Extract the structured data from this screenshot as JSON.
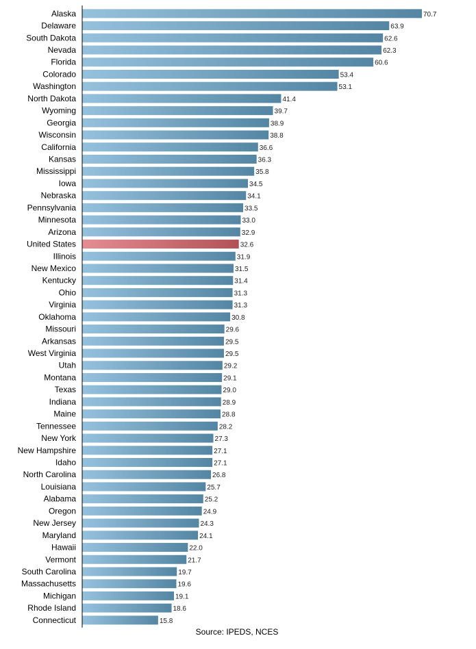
{
  "chart_data": {
    "type": "bar",
    "orientation": "horizontal",
    "categories": [
      "Alaska",
      "Delaware",
      "South Dakota",
      "Nevada",
      "Florida",
      "Colorado",
      "Washington",
      "North Dakota",
      "Wyoming",
      "Georgia",
      "Wisconsin",
      "California",
      "Kansas",
      "Mississippi",
      "Iowa",
      "Nebraska",
      "Pennsylvania",
      "Minnesota",
      "Arizona",
      "United States",
      "Illinois",
      "New Mexico",
      "Kentucky",
      "Ohio",
      "Virginia",
      "Oklahoma",
      "Missouri",
      "Arkansas",
      "West Virginia",
      "Utah",
      "Montana",
      "Texas",
      "Indiana",
      "Maine",
      "Tennessee",
      "New York",
      "New Hampshire",
      "Idaho",
      "North Carolina",
      "Louisiana",
      "Alabama",
      "Oregon",
      "New Jersey",
      "Maryland",
      "Hawaii",
      "Vermont",
      "South Carolina",
      "Massachusetts",
      "Michigan",
      "Rhode Island",
      "Connecticut"
    ],
    "values": [
      70.7,
      63.9,
      62.6,
      62.3,
      60.6,
      53.4,
      53.1,
      41.4,
      39.7,
      38.9,
      38.8,
      36.6,
      36.3,
      35.8,
      34.5,
      34.1,
      33.5,
      33.0,
      32.9,
      32.6,
      31.9,
      31.5,
      31.4,
      31.3,
      31.3,
      30.8,
      29.6,
      29.5,
      29.5,
      29.2,
      29.1,
      29.0,
      28.9,
      28.8,
      28.2,
      27.3,
      27.1,
      27.1,
      26.8,
      25.7,
      25.2,
      24.9,
      24.3,
      24.1,
      22.0,
      21.7,
      19.7,
      19.6,
      19.1,
      18.6,
      15.8
    ],
    "value_labels": [
      "70.7",
      "63.9",
      "62.6",
      "62.3",
      "60.6",
      "53.4",
      "53.1",
      "41.4",
      "39.7",
      "38.9",
      "38.8",
      "36.6",
      "36.3",
      "35.8",
      "34.5",
      "34.1",
      "33.5",
      "33.0",
      "32.9",
      "32.6",
      "31.9",
      "31.5",
      "31.4",
      "31.3",
      "31.3",
      "30.8",
      "29.6",
      "29.5",
      "29.5",
      "29.2",
      "29.1",
      "29.0",
      "28.9",
      "28.8",
      "28.2",
      "27.3",
      "27.1",
      "27.1",
      "26.8",
      "25.7",
      "25.2",
      "24.9",
      "24.3",
      "24.1",
      "22.0",
      "21.7",
      "19.7",
      "19.6",
      "19.1",
      "18.6",
      "15.8"
    ],
    "highlight_category": "United States",
    "xlim": [
      0,
      70.7
    ],
    "grid": false,
    "legend": "none",
    "colors": {
      "bar_start": "#95c1dd",
      "bar_end": "#5486a3",
      "highlight_start": "#e48d92",
      "highlight_end": "#b25258",
      "axis": "#000000"
    }
  },
  "source": "Source: IPEDS, NCES"
}
